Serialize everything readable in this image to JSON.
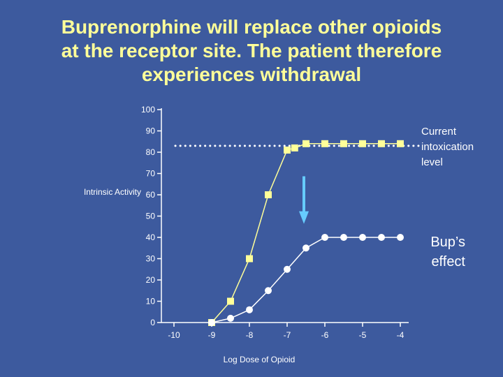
{
  "title_lines": [
    "Buprenorphine will replace other opioids",
    "at the receptor site.  The patient therefore",
    "experiences withdrawal"
  ],
  "colors": {
    "background": "#3d5a9e",
    "title": "#ffff99",
    "opioid_series": "#ffff99",
    "bup_series": "#ffffff",
    "arrow": "#66ccff",
    "axis": "#ffffff",
    "dotted_line": "#ffffff"
  },
  "chart_data": {
    "type": "line",
    "title": "",
    "xlabel": "Log Dose of Opioid",
    "ylabel": "Intrinsic Activity",
    "x_ticks": [
      -10,
      -9,
      -8,
      -7,
      -6,
      -5,
      -4
    ],
    "y_ticks": [
      0,
      10,
      20,
      30,
      40,
      50,
      60,
      70,
      80,
      90,
      100
    ],
    "xlim": [
      -10.5,
      -3.9
    ],
    "ylim": [
      0,
      100
    ],
    "grid": false,
    "series": [
      {
        "marker": "square",
        "color": "#ffff99",
        "x": [
          -9.0,
          -8.5,
          -8.0,
          -7.5,
          -7.0,
          -6.8,
          -6.5,
          -6.0,
          -5.5,
          -5.0,
          -4.5,
          -4.0
        ],
        "y": [
          0,
          10,
          30,
          60,
          81,
          82,
          84,
          84,
          84,
          84,
          84,
          84
        ]
      },
      {
        "marker": "circle",
        "color": "#ffffff",
        "x": [
          -9.0,
          -8.5,
          -8.0,
          -7.5,
          -7.0,
          -6.5,
          -6.0,
          -5.5,
          -5.0,
          -4.5,
          -4.0
        ],
        "y": [
          0,
          2,
          6,
          15,
          25,
          35,
          40,
          40,
          40,
          40,
          40
        ]
      }
    ],
    "reference_line": {
      "y": 83,
      "style": "dotted"
    },
    "arrow": {
      "x": -6.5,
      "y_from": 70,
      "y_to": 47
    },
    "annotations": [
      {
        "lines": [
          "Current",
          "intoxication",
          "level"
        ]
      },
      {
        "lines": [
          "Bup’s",
          "effect"
        ]
      }
    ]
  }
}
